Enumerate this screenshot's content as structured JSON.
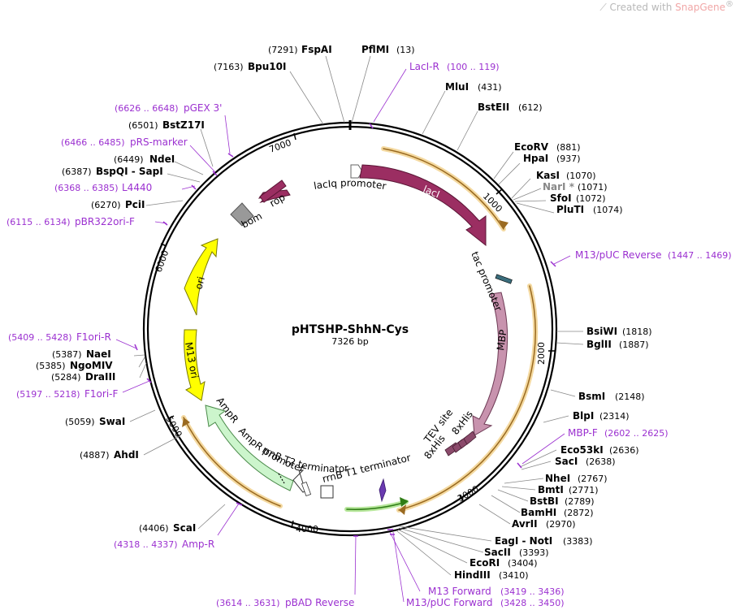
{
  "watermark": {
    "prefix": "Created with ",
    "brand": "SnapGene",
    "reg": "®"
  },
  "plasmid": {
    "name": "pHTSHP-ShhN-Cys",
    "length_label": "7326 bp"
  },
  "ticks": [
    "1000",
    "2000",
    "3000",
    "4000",
    "5000",
    "6000",
    "7000"
  ],
  "enzymes": [
    {
      "name": "FspAI",
      "pos": "(7291)"
    },
    {
      "name": "PflMI",
      "pos": "(13)"
    },
    {
      "name": "Bpu10I",
      "pos": "(7163)"
    },
    {
      "name": "MluI",
      "pos": "(431)"
    },
    {
      "name": "BstEII",
      "pos": "(612)"
    },
    {
      "name": "BstZ17I",
      "pos": "(6501)"
    },
    {
      "name": "EcoRV",
      "pos": "(881)"
    },
    {
      "name": "HpaI",
      "pos": "(937)"
    },
    {
      "name": "NdeI",
      "pos": "(6449)"
    },
    {
      "name": "BspQI - SapI",
      "pos": "(6387)"
    },
    {
      "name": "KasI",
      "pos": "(1070)"
    },
    {
      "name": "NarI *",
      "pos": "(1071)"
    },
    {
      "name": "SfoI",
      "pos": "(1072)"
    },
    {
      "name": "PluTI",
      "pos": "(1074)"
    },
    {
      "name": "PciI",
      "pos": "(6270)"
    },
    {
      "name": "BsiWI",
      "pos": "(1818)"
    },
    {
      "name": "BglII",
      "pos": "(1887)"
    },
    {
      "name": "NaeI",
      "pos": "(5387)"
    },
    {
      "name": "NgoMIV",
      "pos": "(5385)"
    },
    {
      "name": "DraIII",
      "pos": "(5284)"
    },
    {
      "name": "BsmI",
      "pos": "(2148)"
    },
    {
      "name": "BlpI",
      "pos": "(2314)"
    },
    {
      "name": "SwaI",
      "pos": "(5059)"
    },
    {
      "name": "AhdI",
      "pos": "(4887)"
    },
    {
      "name": "Eco53kI",
      "pos": "(2636)"
    },
    {
      "name": "SacI",
      "pos": "(2638)"
    },
    {
      "name": "NheI",
      "pos": "(2767)"
    },
    {
      "name": "BmtI",
      "pos": "(2771)"
    },
    {
      "name": "BstBI",
      "pos": "(2789)"
    },
    {
      "name": "BamHI",
      "pos": "(2872)"
    },
    {
      "name": "AvrII",
      "pos": "(2970)"
    },
    {
      "name": "ScaI",
      "pos": "(4406)"
    },
    {
      "name": "EagI - NotI",
      "pos": "(3383)"
    },
    {
      "name": "SacII",
      "pos": "(3393)"
    },
    {
      "name": "EcoRI",
      "pos": "(3404)"
    },
    {
      "name": "HindIII",
      "pos": "(3410)"
    }
  ],
  "primers": [
    {
      "name": "LacI-R",
      "range": "(100 .. 119)"
    },
    {
      "name": "pGEX 3'",
      "range": "(6626 .. 6648)"
    },
    {
      "name": "pRS-marker",
      "range": "(6466 .. 6485)"
    },
    {
      "name": "L4440",
      "range": "(6368 .. 6385)"
    },
    {
      "name": "pBR322ori-F",
      "range": "(6115 .. 6134)"
    },
    {
      "name": "M13/pUC Reverse",
      "range": "(1447 .. 1469)"
    },
    {
      "name": "F1ori-R",
      "range": "(5409 .. 5428)"
    },
    {
      "name": "F1ori-F",
      "range": "(5197 .. 5218)"
    },
    {
      "name": "MBP-F",
      "range": "(2602 .. 2625)"
    },
    {
      "name": "Amp-R",
      "range": "(4318 .. 4337)"
    },
    {
      "name": "M13 Forward",
      "range": "(3419 .. 3436)"
    },
    {
      "name": "M13/pUC Forward",
      "range": "(3428 .. 3450)"
    },
    {
      "name": "pBAD Reverse",
      "range": "(3614 .. 3631)"
    }
  ],
  "features": {
    "laciq_promoter": "lacIq promoter",
    "laci": "lacI",
    "rop": "rop",
    "bom": "bom",
    "tac_promoter": "tac promoter",
    "mbp": "MBP",
    "tev_site": "TEV site",
    "his1": "8xHis",
    "his2": "8xHis",
    "ori": "ori",
    "m13_ori": "M13 ori",
    "ampr": "AmpR",
    "ampr_promoter": "AmpR promoter",
    "rrnb_t2": "rrnB T2 terminator",
    "rrnb_t1": "rrnB T1 terminator"
  },
  "colors": {
    "laci": "#9b2e62",
    "rop": "#9b2e62",
    "mbp": "#c893ae",
    "ori": "#ffff00",
    "m13_ori": "#ffff00",
    "ampr": "#ccf5cc",
    "orange": "#e0a040",
    "primer": "#9b30d0",
    "bom": "#999999",
    "tev": "#8b4a6b",
    "rrnb_t1": "#6a3ab0",
    "green_orf": "#44aa22"
  }
}
